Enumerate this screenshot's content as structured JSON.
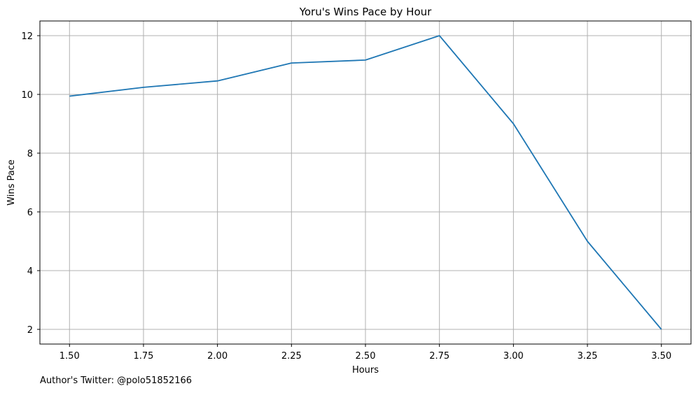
{
  "chart_data": {
    "type": "line",
    "title": "Yoru's Wins Pace by Hour",
    "xlabel": "Hours",
    "ylabel": "Wins Pace",
    "x": [
      1.5,
      1.75,
      2.0,
      2.25,
      2.5,
      2.75,
      3.0,
      3.25,
      3.5
    ],
    "series": [
      {
        "values": [
          9.94,
          10.24,
          10.46,
          11.07,
          11.17,
          12.0,
          9.0,
          5.0,
          2.0
        ]
      }
    ],
    "x_ticks": [
      "1.50",
      "1.75",
      "2.00",
      "2.25",
      "2.50",
      "2.75",
      "3.00",
      "3.25",
      "3.50"
    ],
    "y_ticks": [
      "2",
      "4",
      "6",
      "8",
      "10",
      "12"
    ],
    "xlim": [
      1.4,
      3.6
    ],
    "ylim": [
      1.5,
      12.5
    ],
    "grid": true,
    "colors": {
      "line": "#1f77b4",
      "grid": "#b0b0b0"
    }
  },
  "footnote": "Author's Twitter: @polo51852166"
}
